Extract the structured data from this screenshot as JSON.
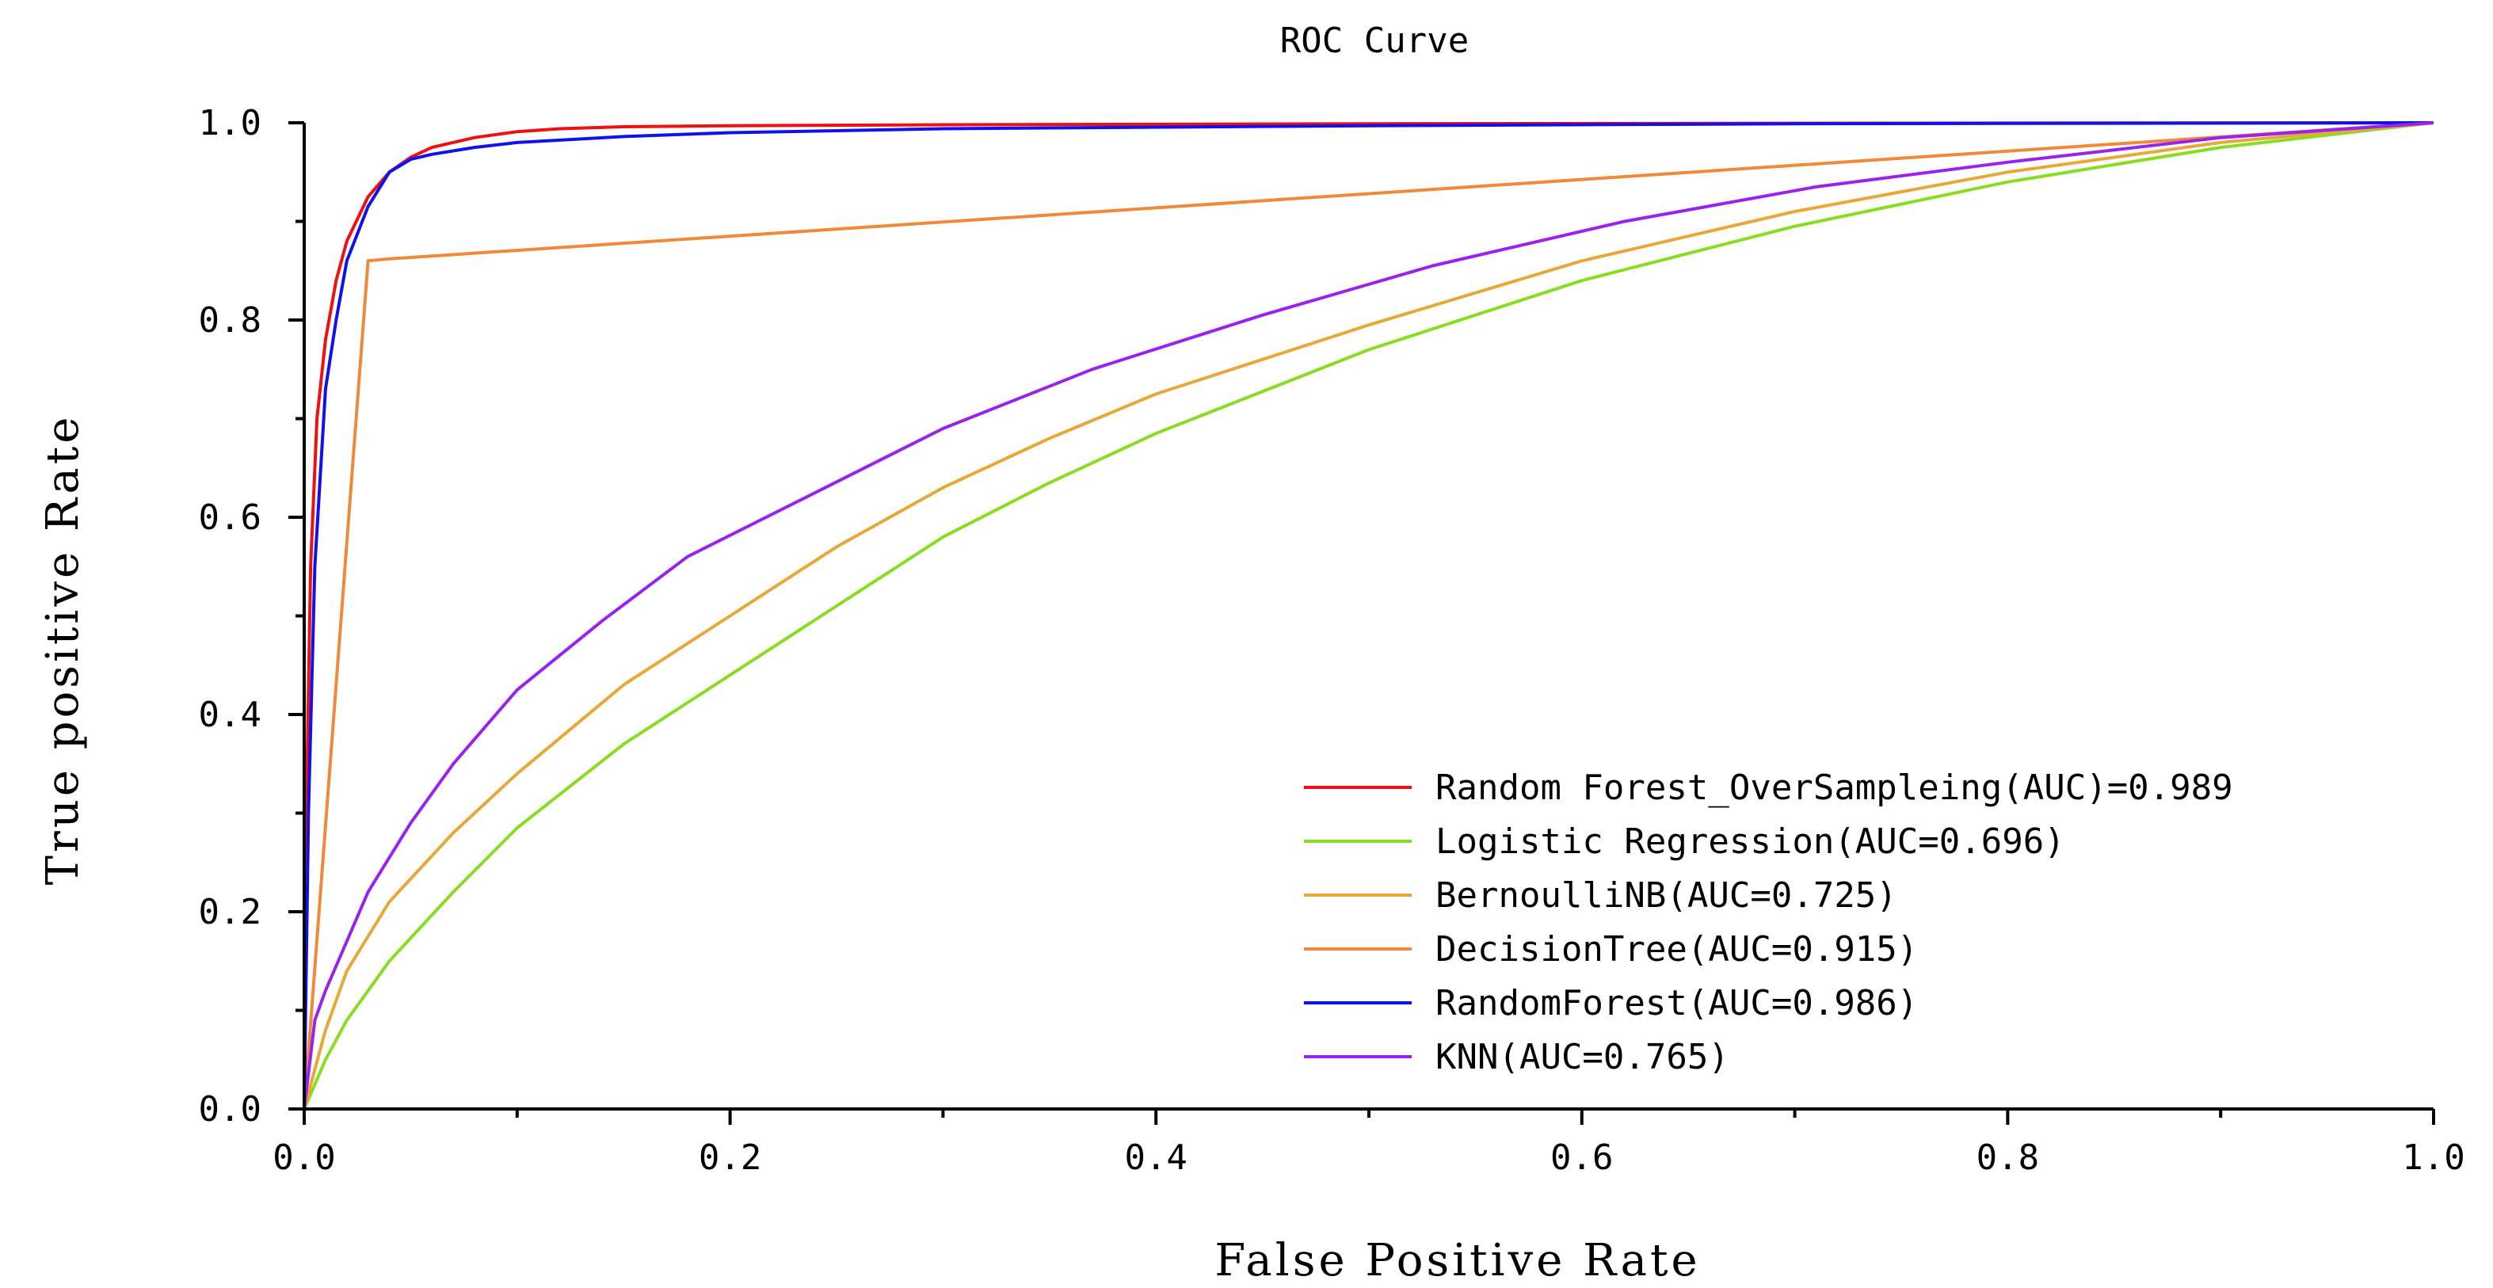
{
  "chart_data": {
    "type": "line",
    "title": "ROC Curve",
    "xlabel": "False Positive Rate",
    "ylabel": "True positive Rate",
    "xlim": [
      0.0,
      1.0
    ],
    "ylim": [
      0.0,
      1.0
    ],
    "x_ticks": [
      "0.0",
      "0.2",
      "0.4",
      "0.6",
      "0.8",
      "1.0"
    ],
    "y_ticks": [
      "0.0",
      "0.2",
      "0.4",
      "0.6",
      "0.8",
      "1.0"
    ],
    "x_tick_values": [
      0.0,
      0.2,
      0.4,
      0.6,
      0.8,
      1.0
    ],
    "y_tick_values": [
      0.0,
      0.2,
      0.4,
      0.6,
      0.8,
      1.0
    ],
    "legend_position": "bottom-right",
    "grid": false,
    "series": [
      {
        "name": "Random Forest_OverSampleing(AUC)=0.989",
        "color": "#ee1111",
        "x": [
          0,
          0.001,
          0.003,
          0.006,
          0.01,
          0.015,
          0.02,
          0.03,
          0.04,
          0.05,
          0.06,
          0.08,
          0.1,
          0.12,
          0.15,
          0.2,
          0.3,
          0.5,
          0.7,
          1.0
        ],
        "y": [
          0,
          0.3,
          0.55,
          0.7,
          0.78,
          0.84,
          0.88,
          0.925,
          0.95,
          0.965,
          0.975,
          0.985,
          0.991,
          0.994,
          0.996,
          0.997,
          0.998,
          0.999,
          0.9995,
          1.0
        ]
      },
      {
        "name": "Logistic Regression(AUC=0.696)",
        "color": "#88dd22",
        "x": [
          0,
          0.01,
          0.02,
          0.04,
          0.07,
          0.1,
          0.15,
          0.2,
          0.25,
          0.3,
          0.35,
          0.4,
          0.5,
          0.6,
          0.7,
          0.8,
          0.9,
          1.0
        ],
        "y": [
          0,
          0.05,
          0.09,
          0.15,
          0.22,
          0.285,
          0.37,
          0.44,
          0.51,
          0.58,
          0.635,
          0.685,
          0.77,
          0.84,
          0.895,
          0.94,
          0.975,
          1.0
        ]
      },
      {
        "name": "BernoulliNB(AUC=0.725)",
        "color": "#e8a838",
        "x": [
          0,
          0.005,
          0.01,
          0.02,
          0.04,
          0.07,
          0.1,
          0.15,
          0.2,
          0.25,
          0.3,
          0.35,
          0.4,
          0.5,
          0.6,
          0.7,
          0.8,
          0.9,
          1.0
        ],
        "y": [
          0,
          0.04,
          0.08,
          0.14,
          0.21,
          0.28,
          0.34,
          0.43,
          0.5,
          0.57,
          0.63,
          0.68,
          0.725,
          0.795,
          0.86,
          0.91,
          0.95,
          0.98,
          1.0
        ]
      },
      {
        "name": "DecisionTree(AUC=0.915)",
        "color": "#f08a3a",
        "x": [
          0,
          0.03,
          0.04,
          1.0
        ],
        "y": [
          0,
          0.86,
          0.862,
          1.0
        ]
      },
      {
        "name": "RandomForest(AUC=0.986)",
        "color": "#1111ee",
        "x": [
          0,
          0.002,
          0.005,
          0.01,
          0.015,
          0.02,
          0.03,
          0.04,
          0.05,
          0.06,
          0.08,
          0.1,
          0.15,
          0.2,
          0.3,
          0.5,
          0.7,
          1.0
        ],
        "y": [
          0,
          0.3,
          0.55,
          0.73,
          0.8,
          0.86,
          0.915,
          0.95,
          0.963,
          0.968,
          0.975,
          0.98,
          0.986,
          0.99,
          0.994,
          0.997,
          0.999,
          1.0
        ]
      },
      {
        "name": "KNN(AUC=0.765)",
        "color": "#9922ee",
        "x": [
          0,
          0.005,
          0.01,
          0.02,
          0.03,
          0.05,
          0.07,
          0.1,
          0.14,
          0.18,
          0.24,
          0.3,
          0.37,
          0.45,
          0.53,
          0.62,
          0.71,
          0.8,
          0.9,
          1.0
        ],
        "y": [
          0,
          0.09,
          0.12,
          0.17,
          0.22,
          0.29,
          0.35,
          0.425,
          0.495,
          0.56,
          0.625,
          0.69,
          0.75,
          0.805,
          0.855,
          0.9,
          0.935,
          0.96,
          0.985,
          1.0
        ]
      }
    ]
  }
}
